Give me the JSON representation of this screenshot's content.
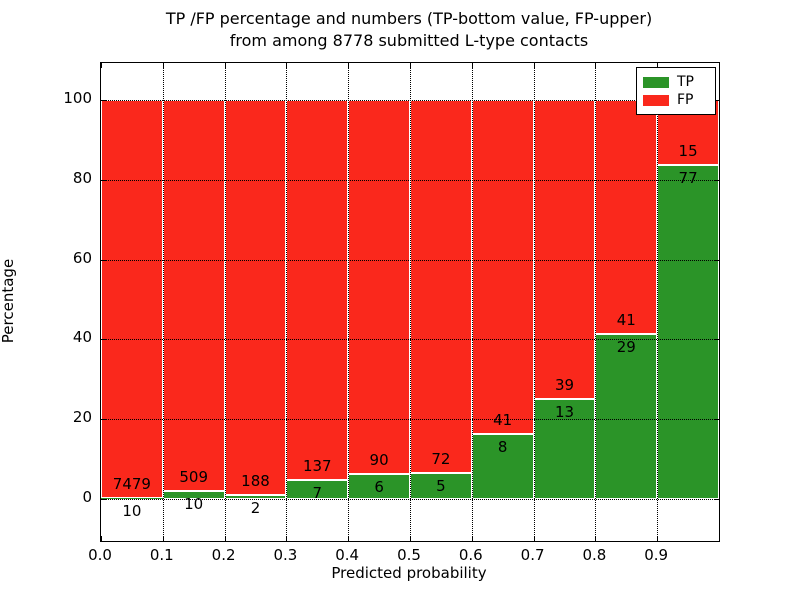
{
  "figure": {
    "title_line1": "TP /FP percentage and numbers (TP-bottom value, FP-upper)",
    "title_line2": "from among 8778 submitted L-type contacts",
    "xlabel": "Predicted probability",
    "ylabel": "Percentage"
  },
  "legend": {
    "tp_label": "TP",
    "fp_label": "FP"
  },
  "colors": {
    "tp_green": "#2b9428",
    "fp_red": "#fa281c",
    "grid": "#000000",
    "bar_edge": "#ffffff"
  },
  "chart_data": {
    "type": "bar",
    "stacking": "percent",
    "title": "TP /FP percentage and numbers (TP-bottom value, FP-upper) from among 8778 submitted L-type contacts",
    "xlabel": "Predicted probability",
    "ylabel": "Percentage",
    "total_contacts": 8778,
    "categories": [
      "0.0-0.1",
      "0.1-0.2",
      "0.2-0.3",
      "0.3-0.4",
      "0.4-0.5",
      "0.5-0.6",
      "0.6-0.7",
      "0.7-0.8",
      "0.8-0.9",
      "0.9-1.0"
    ],
    "series": [
      {
        "name": "TP",
        "values": [
          10,
          10,
          2,
          7,
          6,
          5,
          8,
          13,
          29,
          77
        ]
      },
      {
        "name": "FP",
        "values": [
          7479,
          509,
          188,
          137,
          90,
          72,
          41,
          39,
          41,
          15
        ]
      }
    ],
    "tp_percent": [
      0.13,
      1.93,
      1.05,
      4.86,
      6.25,
      6.49,
      16.33,
      25.0,
      41.43,
      83.7
    ],
    "x_tick_labels": [
      "0.0",
      "0.1",
      "0.2",
      "0.3",
      "0.4",
      "0.5",
      "0.6",
      "0.7",
      "0.8",
      "0.9"
    ],
    "y_ticks": [
      0,
      20,
      40,
      60,
      80,
      100
    ],
    "xlim": [
      0.0,
      1.0
    ],
    "ylim": [
      -10.5,
      109.5
    ],
    "grid": true,
    "legend_position": "upper right"
  }
}
